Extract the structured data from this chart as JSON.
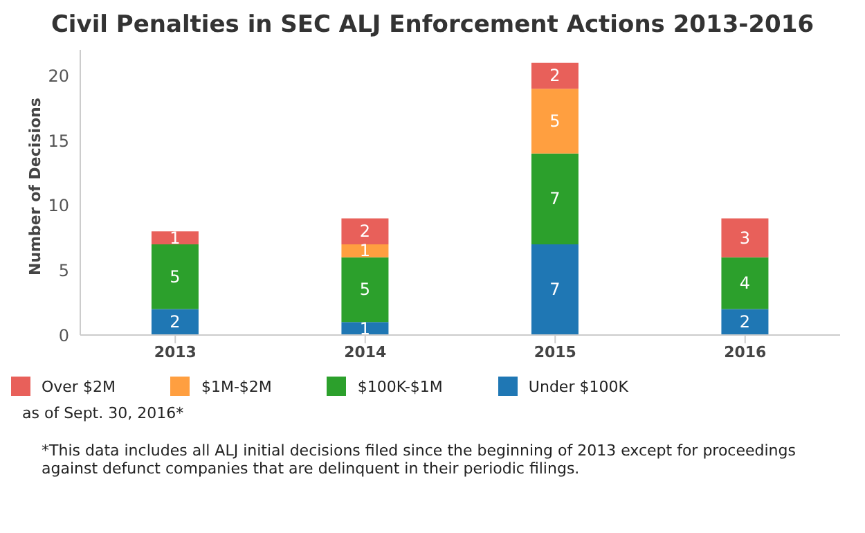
{
  "chart_data": {
    "type": "bar",
    "title": "Civil Penalties in SEC ALJ Enforcement Actions 2013-2016",
    "ylabel": "Number of Decisions",
    "categories": [
      "2013",
      "2014",
      "2015",
      "2016"
    ],
    "stacked": true,
    "series": [
      {
        "name": "Under $100K",
        "color": "#1f77b4",
        "values": [
          2,
          1,
          7,
          2
        ],
        "value_labels": [
          "2",
          "1",
          "7",
          "2"
        ]
      },
      {
        "name": "$100K-$1M",
        "color": "#2ca02c",
        "values": [
          5,
          5,
          7,
          4
        ],
        "value_labels": [
          "5",
          "5",
          "7",
          "4"
        ]
      },
      {
        "name": "$1M-$2M",
        "color": "#ff9f40",
        "values": [
          0,
          1,
          5,
          0
        ],
        "value_labels": [
          null,
          "1",
          "5",
          null
        ]
      },
      {
        "name": "Over $2M",
        "color": "#e8605a",
        "values": [
          1,
          2,
          2,
          3
        ],
        "value_labels": [
          "1",
          "2",
          "2",
          "3"
        ]
      }
    ],
    "ylim": [
      0,
      22
    ],
    "yticks": [
      0,
      5,
      10,
      15,
      20
    ],
    "grid": false,
    "legend": "bottom",
    "annotations": [
      "as of Sept. 30, 2016*",
      "*This data includes all ALJ initial decisions filed since the beginning of 2013 except for proceedings against defunct companies that are delinquent in their periodic filings."
    ]
  }
}
